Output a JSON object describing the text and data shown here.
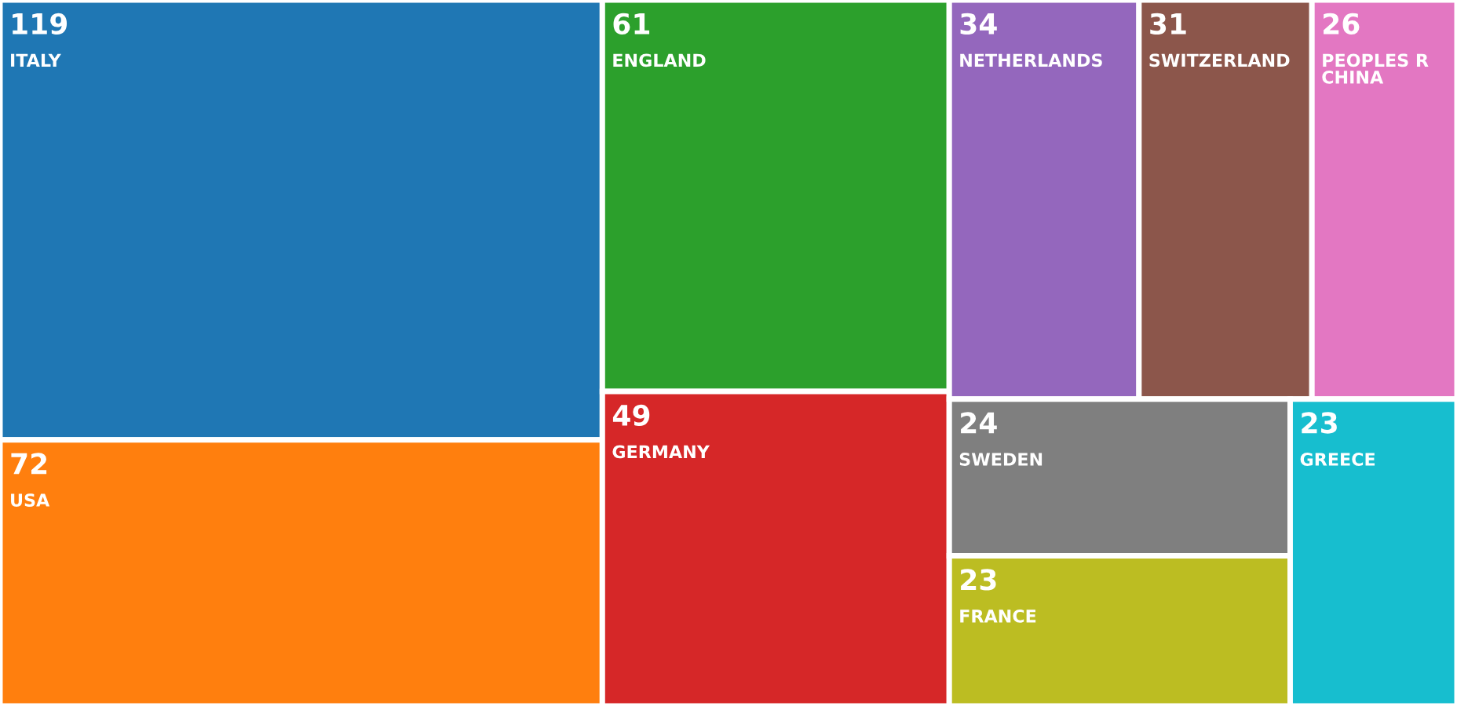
{
  "chart_data": {
    "type": "other",
    "categories": [
      "ITALY",
      "USA",
      "ENGLAND",
      "GERMANY",
      "NETHERLANDS",
      "SWITZERLAND",
      "PEOPLES R CHINA",
      "SWEDEN",
      "FRANCE",
      "GREECE"
    ],
    "values": [
      119,
      72,
      61,
      49,
      34,
      31,
      26,
      24,
      23,
      23
    ],
    "colors": [
      "#1f77b4",
      "#ff7f0e",
      "#2ca02c",
      "#d62728",
      "#9467bd",
      "#8c564b",
      "#e377c2",
      "#7f7f7f",
      "#bcbd22",
      "#17becf"
    ],
    "data_labels": true
  }
}
